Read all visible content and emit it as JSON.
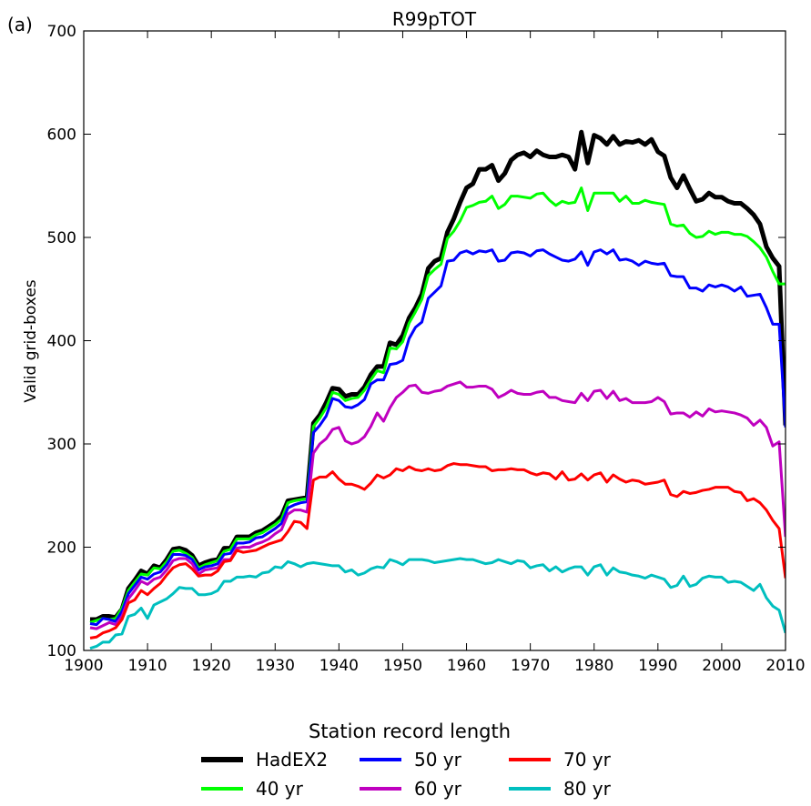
{
  "panel_label": "(a)",
  "chart_data": {
    "type": "line",
    "title": "R99pTOT",
    "xlabel": "",
    "ylabel": "Valid grid-boxes",
    "xlim": [
      1900,
      2010
    ],
    "ylim": [
      100,
      700
    ],
    "xticks": [
      1900,
      1910,
      1920,
      1930,
      1940,
      1950,
      1960,
      1970,
      1980,
      1990,
      2000,
      2010
    ],
    "yticks": [
      100,
      200,
      300,
      400,
      500,
      600,
      700
    ],
    "grid": false,
    "legend_title": "Station record length",
    "legend_position": "bottom-center",
    "x": [
      1901,
      1902,
      1903,
      1904,
      1905,
      1906,
      1907,
      1908,
      1909,
      1910,
      1911,
      1912,
      1913,
      1914,
      1915,
      1916,
      1917,
      1918,
      1919,
      1920,
      1921,
      1922,
      1923,
      1924,
      1925,
      1926,
      1927,
      1928,
      1929,
      1930,
      1931,
      1932,
      1933,
      1934,
      1935,
      1936,
      1937,
      1938,
      1939,
      1940,
      1941,
      1942,
      1943,
      1944,
      1945,
      1946,
      1947,
      1948,
      1949,
      1950,
      1951,
      1952,
      1953,
      1954,
      1955,
      1956,
      1957,
      1958,
      1959,
      1960,
      1961,
      1962,
      1963,
      1964,
      1965,
      1966,
      1967,
      1968,
      1969,
      1970,
      1971,
      1972,
      1973,
      1974,
      1975,
      1976,
      1977,
      1978,
      1979,
      1980,
      1981,
      1982,
      1983,
      1984,
      1985,
      1986,
      1987,
      1988,
      1989,
      1990,
      1991,
      1992,
      1993,
      1994,
      1995,
      1996,
      1997,
      1998,
      1999,
      2000,
      2001,
      2002,
      2003,
      2004,
      2005,
      2006,
      2007,
      2008,
      2009,
      2010
    ],
    "series": [
      {
        "name": "HadEX2",
        "color": "#000000",
        "width": 5,
        "values": [
          130,
          130,
          133,
          133,
          132,
          140,
          160,
          168,
          177,
          174,
          182,
          180,
          188,
          198,
          199,
          197,
          192,
          182,
          185,
          187,
          188,
          199,
          199,
          210,
          210,
          210,
          214,
          216,
          220,
          224,
          230,
          245,
          246,
          247,
          248,
          320,
          328,
          340,
          354,
          353,
          346,
          348,
          348,
          355,
          367,
          375,
          375,
          398,
          396,
          405,
          422,
          432,
          445,
          470,
          477,
          480,
          505,
          518,
          534,
          548,
          552,
          566,
          566,
          570,
          555,
          562,
          575,
          580,
          582,
          578,
          584,
          580,
          578,
          578,
          580,
          578,
          566,
          602,
          572,
          599,
          596,
          590,
          598,
          590,
          593,
          592,
          594,
          590,
          595,
          583,
          579,
          558,
          548,
          560,
          547,
          535,
          537,
          543,
          539,
          539,
          535,
          533,
          533,
          528,
          522,
          513,
          491,
          480,
          472,
          318
        ]
      },
      {
        "name": "40 yr",
        "color": "#00ff00",
        "width": 3,
        "values": [
          127,
          129,
          131,
          130,
          131,
          141,
          158,
          166,
          174,
          173,
          180,
          179,
          186,
          196,
          197,
          194,
          190,
          180,
          183,
          185,
          187,
          196,
          198,
          208,
          208,
          208,
          212,
          214,
          218,
          222,
          227,
          243,
          245,
          246,
          247,
          317,
          325,
          335,
          350,
          348,
          342,
          344,
          345,
          352,
          362,
          371,
          369,
          393,
          392,
          399,
          417,
          428,
          440,
          463,
          469,
          474,
          499,
          506,
          516,
          529,
          531,
          534,
          535,
          540,
          528,
          532,
          540,
          540,
          539,
          538,
          542,
          543,
          536,
          531,
          535,
          533,
          534,
          548,
          526,
          543,
          543,
          543,
          543,
          535,
          540,
          533,
          533,
          536,
          534,
          533,
          532,
          513,
          511,
          512,
          504,
          500,
          501,
          506,
          503,
          505,
          505,
          503,
          503,
          501,
          496,
          490,
          481,
          467,
          455,
          455
        ]
      },
      {
        "name": "50 yr",
        "color": "#0000ff",
        "width": 3,
        "values": [
          126,
          125,
          131,
          130,
          128,
          138,
          155,
          163,
          171,
          169,
          174,
          176,
          183,
          193,
          193,
          192,
          188,
          178,
          181,
          182,
          184,
          193,
          194,
          204,
          204,
          205,
          209,
          210,
          214,
          218,
          223,
          238,
          241,
          243,
          244,
          311,
          318,
          327,
          344,
          342,
          336,
          335,
          338,
          343,
          358,
          362,
          362,
          377,
          378,
          381,
          402,
          413,
          418,
          441,
          447,
          453,
          477,
          478,
          485,
          487,
          484,
          487,
          486,
          488,
          477,
          478,
          485,
          486,
          485,
          482,
          487,
          488,
          484,
          481,
          478,
          477,
          479,
          486,
          473,
          486,
          488,
          484,
          488,
          478,
          479,
          477,
          473,
          477,
          475,
          474,
          475,
          463,
          462,
          462,
          451,
          451,
          448,
          454,
          452,
          454,
          452,
          448,
          452,
          443,
          444,
          445,
          432,
          416,
          416,
          316
        ]
      },
      {
        "name": "60 yr",
        "color": "#bf00bf",
        "width": 3,
        "values": [
          122,
          121,
          124,
          127,
          125,
          133,
          150,
          158,
          167,
          164,
          169,
          171,
          178,
          187,
          189,
          189,
          184,
          174,
          178,
          179,
          180,
          188,
          188,
          199,
          200,
          200,
          203,
          205,
          208,
          213,
          217,
          232,
          236,
          236,
          234,
          291,
          300,
          305,
          314,
          316,
          303,
          300,
          302,
          307,
          317,
          330,
          322,
          335,
          345,
          350,
          356,
          357,
          350,
          349,
          351,
          352,
          356,
          358,
          360,
          355,
          355,
          356,
          356,
          353,
          345,
          348,
          352,
          349,
          348,
          348,
          350,
          351,
          345,
          345,
          342,
          341,
          340,
          349,
          342,
          351,
          352,
          344,
          351,
          342,
          344,
          340,
          340,
          340,
          341,
          345,
          341,
          329,
          330,
          330,
          326,
          331,
          327,
          334,
          331,
          332,
          331,
          330,
          328,
          325,
          318,
          323,
          316,
          298,
          302,
          210
        ]
      },
      {
        "name": "70 yr",
        "color": "#ff0000",
        "width": 3,
        "values": [
          112,
          113,
          117,
          119,
          122,
          130,
          146,
          149,
          158,
          154,
          160,
          165,
          173,
          180,
          183,
          184,
          179,
          172,
          173,
          173,
          177,
          186,
          187,
          197,
          195,
          196,
          197,
          200,
          203,
          205,
          207,
          215,
          225,
          224,
          218,
          265,
          268,
          268,
          273,
          266,
          261,
          261,
          259,
          256,
          262,
          270,
          267,
          270,
          276,
          274,
          278,
          275,
          274,
          276,
          274,
          275,
          279,
          281,
          280,
          280,
          279,
          278,
          278,
          274,
          275,
          275,
          276,
          275,
          275,
          272,
          270,
          272,
          271,
          266,
          273,
          265,
          266,
          271,
          265,
          270,
          272,
          263,
          270,
          266,
          263,
          265,
          264,
          261,
          262,
          263,
          265,
          251,
          249,
          254,
          252,
          253,
          255,
          256,
          258,
          258,
          258,
          254,
          253,
          245,
          247,
          243,
          236,
          226,
          218,
          170
        ]
      },
      {
        "name": "80 yr",
        "color": "#00bfbf",
        "width": 3,
        "values": [
          102,
          104,
          108,
          108,
          115,
          116,
          133,
          135,
          141,
          131,
          144,
          147,
          150,
          155,
          161,
          160,
          160,
          154,
          154,
          155,
          158,
          167,
          167,
          171,
          171,
          172,
          171,
          175,
          176,
          181,
          180,
          186,
          184,
          181,
          184,
          185,
          184,
          183,
          182,
          182,
          176,
          178,
          173,
          175,
          179,
          181,
          180,
          188,
          186,
          183,
          188,
          188,
          188,
          187,
          185,
          186,
          187,
          188,
          189,
          188,
          188,
          186,
          184,
          185,
          188,
          186,
          184,
          187,
          186,
          180,
          182,
          183,
          177,
          181,
          176,
          179,
          181,
          181,
          173,
          181,
          183,
          173,
          180,
          176,
          175,
          173,
          172,
          170,
          173,
          171,
          169,
          161,
          163,
          172,
          162,
          164,
          170,
          172,
          171,
          171,
          166,
          167,
          166,
          162,
          158,
          164,
          151,
          143,
          139,
          117
        ]
      }
    ]
  }
}
